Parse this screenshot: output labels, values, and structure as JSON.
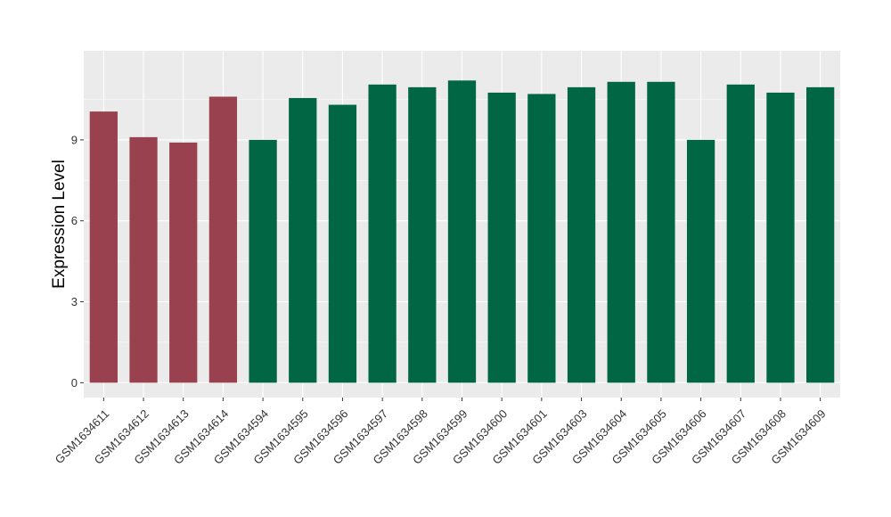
{
  "chart_data": {
    "type": "bar",
    "title": "",
    "xlabel": "",
    "ylabel": "Expression Level",
    "ylim": [
      -0.55,
      12.3
    ],
    "yticks": [
      0,
      3,
      6,
      9
    ],
    "grid": true,
    "categories": [
      "GSM1634611",
      "GSM1634612",
      "GSM1634613",
      "GSM1634614",
      "GSM1634594",
      "GSM1634595",
      "GSM1634596",
      "GSM1634597",
      "GSM1634598",
      "GSM1634599",
      "GSM1634600",
      "GSM1634601",
      "GSM1634603",
      "GSM1634604",
      "GSM1634605",
      "GSM1634606",
      "GSM1634607",
      "GSM1634608",
      "GSM1634609"
    ],
    "values": [
      10.05,
      9.1,
      8.9,
      10.6,
      9.0,
      10.55,
      10.3,
      11.05,
      10.95,
      11.2,
      10.75,
      10.7,
      10.95,
      11.15,
      11.15,
      9.0,
      11.05,
      10.75,
      10.95
    ],
    "groups": [
      "a",
      "a",
      "a",
      "a",
      "b",
      "b",
      "b",
      "b",
      "b",
      "b",
      "b",
      "b",
      "b",
      "b",
      "b",
      "b",
      "b",
      "b",
      "b"
    ],
    "colors": {
      "a": "#99414f",
      "b": "#006644"
    },
    "panel_background": "#ebebeb",
    "grid_color": "#ffffff"
  }
}
